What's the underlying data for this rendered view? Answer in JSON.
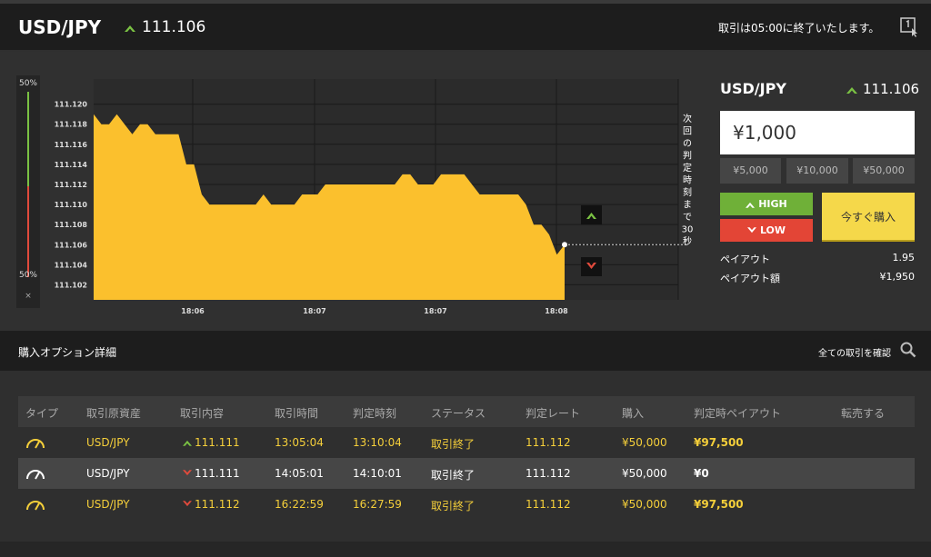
{
  "header": {
    "pair": "USD/JPY",
    "rate": "111.106",
    "notice": "取引は05:00に終了いたします。",
    "exit_icon": "exit-icon"
  },
  "gauge": {
    "high_pct": "50%",
    "low_pct": "50%",
    "close_label": "×",
    "high_fraction": 0.5
  },
  "chart_data": {
    "type": "area",
    "y_ticks": [
      "111.120",
      "111.118",
      "111.116",
      "111.114",
      "111.112",
      "111.110",
      "111.108",
      "111.106",
      "111.104",
      "111.102"
    ],
    "x_ticks": [
      "18:06",
      "18:07",
      "18:07",
      "18:08"
    ],
    "ylim": [
      111.1005,
      111.1225
    ],
    "current_rate": 111.106,
    "countdown_text": "次回の判定時刻まで30秒",
    "fill_color": "#fbc02d",
    "values": [
      111.119,
      111.118,
      111.118,
      111.119,
      111.118,
      111.117,
      111.118,
      111.118,
      111.117,
      111.117,
      111.117,
      111.117,
      111.114,
      111.114,
      111.111,
      111.11,
      111.11,
      111.11,
      111.11,
      111.11,
      111.11,
      111.11,
      111.111,
      111.11,
      111.11,
      111.11,
      111.11,
      111.111,
      111.111,
      111.111,
      111.112,
      111.112,
      111.112,
      111.112,
      111.112,
      111.112,
      111.112,
      111.112,
      111.112,
      111.112,
      111.113,
      111.113,
      111.112,
      111.112,
      111.112,
      111.113,
      111.113,
      111.113,
      111.113,
      111.112,
      111.111,
      111.111,
      111.111,
      111.111,
      111.111,
      111.111,
      111.11,
      111.108,
      111.108,
      111.107,
      111.105,
      111.106
    ]
  },
  "panel": {
    "pair": "USD/JPY",
    "rate": "111.106",
    "amount": "¥1,000",
    "presets": [
      "¥5,000",
      "¥10,000",
      "¥50,000"
    ],
    "high_label": "HIGH",
    "low_label": "LOW",
    "buy_label": "今すぐ購入",
    "payout_label": "ペイアウト",
    "payout_value": "1.95",
    "payout_amount_label": "ペイアウト額",
    "payout_amount_value": "¥1,950"
  },
  "details": {
    "title": "購入オプション詳細",
    "all_link": "全ての取引を確認",
    "columns": [
      "タイプ",
      "取引原資産",
      "取引内容",
      "取引時間",
      "判定時刻",
      "ステータス",
      "判定レート",
      "購入",
      "判定時ペイアウト",
      "転売する"
    ],
    "rows": [
      {
        "asset": "USD/JPY",
        "direction": "high",
        "rate": "111.111",
        "time": "13:05:04",
        "judge": "13:10:04",
        "status": "取引終了",
        "judge_rate": "111.112",
        "purchase": "¥50,000",
        "payout": "¥97,500",
        "color": "#f5cf3a"
      },
      {
        "asset": "USD/JPY",
        "direction": "low",
        "rate": "111.111",
        "time": "14:05:01",
        "judge": "14:10:01",
        "status": "取引終了",
        "judge_rate": "111.112",
        "purchase": "¥50,000",
        "payout": "¥0",
        "color": "#ffffff"
      },
      {
        "asset": "USD/JPY",
        "direction": "low",
        "rate": "111.112",
        "time": "16:22:59",
        "judge": "16:27:59",
        "status": "取引終了",
        "judge_rate": "111.112",
        "purchase": "¥50,000",
        "payout": "¥97,500",
        "color": "#f5cf3a"
      }
    ]
  }
}
